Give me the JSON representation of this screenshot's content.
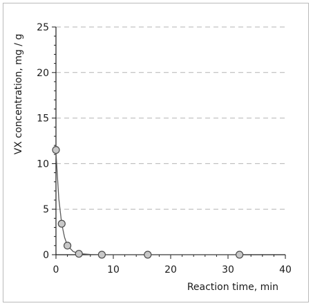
{
  "chart_data": {
    "type": "scatter",
    "title": "",
    "xlabel": "Reaction time, min",
    "ylabel": "VX concentration, mg / g",
    "xlim": [
      0,
      40
    ],
    "ylim": [
      0,
      25
    ],
    "xticks": [
      0,
      10,
      20,
      30,
      40
    ],
    "yticks": [
      0,
      5,
      10,
      15,
      20,
      25
    ],
    "grid": "y-dashed",
    "series": [
      {
        "x": [
          0,
          1,
          2,
          4,
          8,
          16,
          32
        ],
        "y": [
          11.5,
          3.4,
          1.0,
          0.1,
          0.0,
          0.0,
          0.0
        ],
        "marker_fill": "#c8c8c8",
        "marker_stroke": "#4a4a4a"
      }
    ],
    "fit_curve": {
      "x": [
        0,
        0.5,
        1,
        1.5,
        2,
        3,
        4,
        6,
        8,
        12,
        16,
        24,
        32
      ],
      "y": [
        11.2,
        6.1,
        3.4,
        1.9,
        1.0,
        0.35,
        0.12,
        0.03,
        0.0,
        0.0,
        0.0,
        0.0,
        0.0
      ],
      "color": "#5a5a5a"
    }
  }
}
